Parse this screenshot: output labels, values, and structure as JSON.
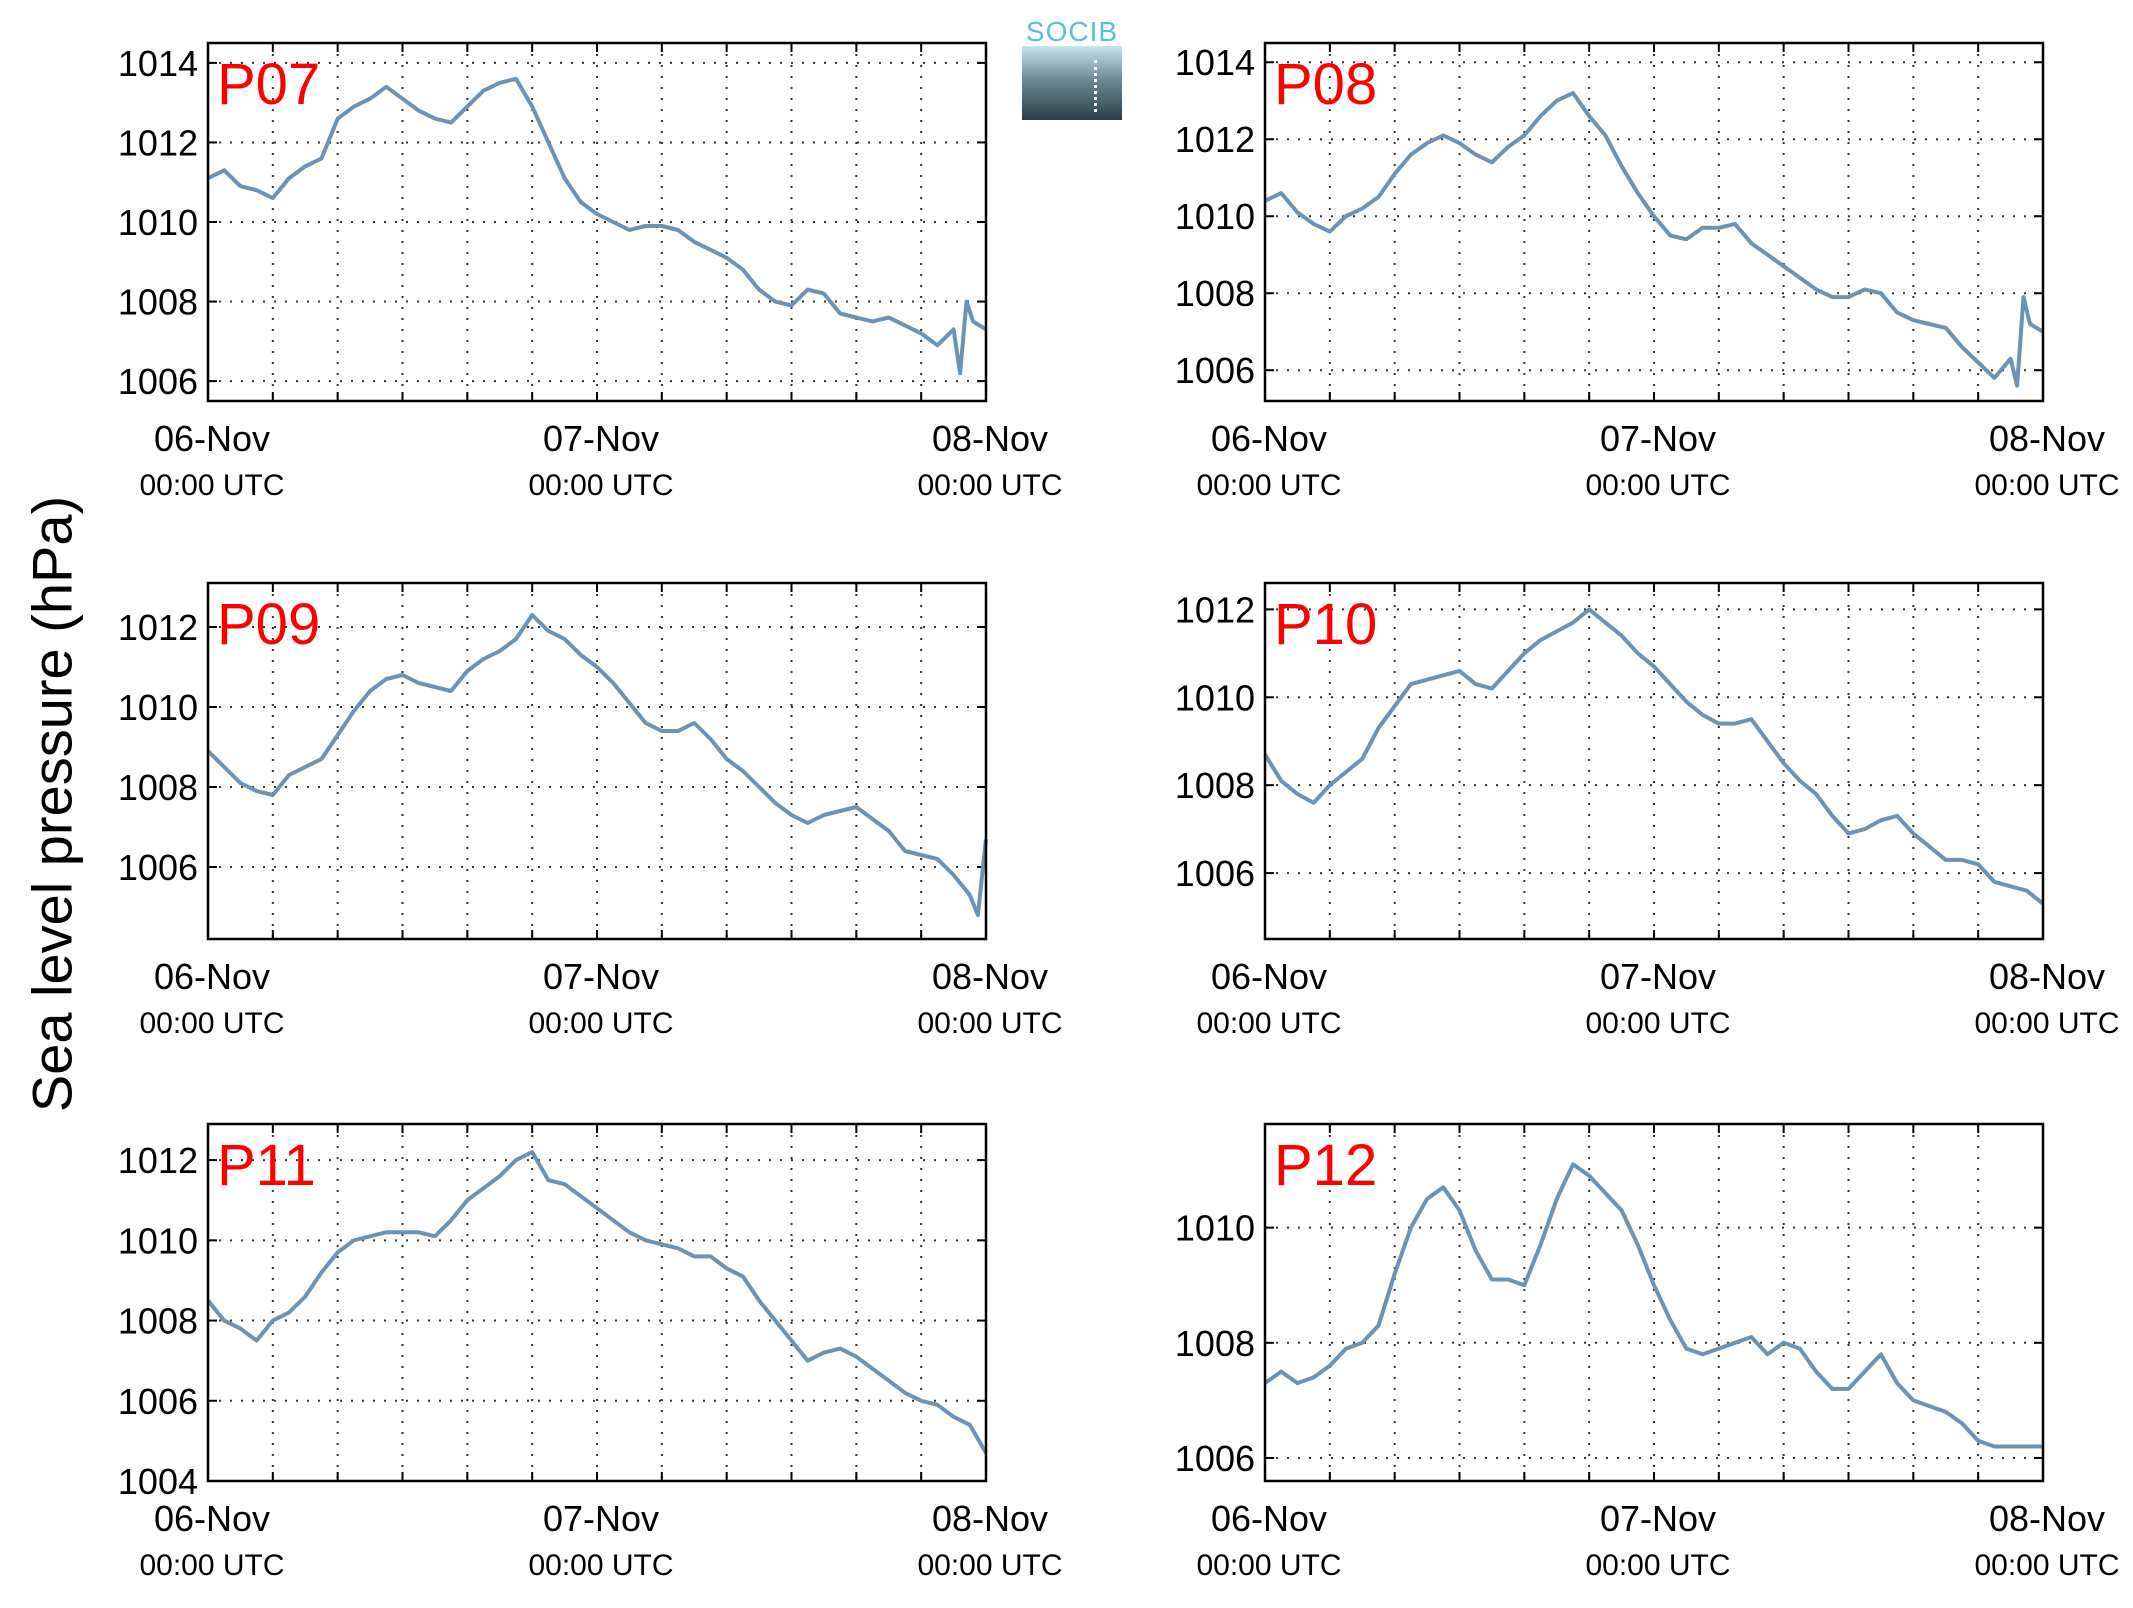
{
  "figure": {
    "ylabel": "Sea level pressure (hPa)",
    "logo_text": "SOCIB"
  },
  "chart_data": [
    {
      "type": "line",
      "panel_label": "P07",
      "ylim": [
        1005.5,
        1014.5
      ],
      "yticks": [
        1006,
        1008,
        1010,
        1012,
        1014
      ],
      "ytick_labels": [
        "1006",
        "1008",
        "1010",
        "1012",
        "1014"
      ],
      "xlim": [
        0,
        48
      ],
      "xticks": [
        0,
        24,
        48
      ],
      "xtick_labels": [
        "06-Nov",
        "07-Nov",
        "08-Nov"
      ],
      "xtick_sublabels": [
        "00:00 UTC",
        "00:00 UTC",
        "00:00 UTC"
      ],
      "grid": true,
      "color": "#6b93b8",
      "label_color": "#ff0000",
      "x": [
        0,
        1,
        2,
        3,
        4,
        5,
        6,
        7,
        8,
        9,
        10,
        11,
        12,
        13,
        14,
        15,
        16,
        17,
        18,
        19,
        20,
        21,
        22,
        23,
        24,
        25,
        26,
        27,
        28,
        29,
        30,
        31,
        32,
        33,
        34,
        35,
        36,
        37,
        38,
        39,
        40,
        41,
        42,
        43,
        44,
        45,
        46,
        46.4,
        46.8,
        47.2,
        48
      ],
      "values": [
        1011.1,
        1011.3,
        1010.9,
        1010.8,
        1010.6,
        1011.1,
        1011.4,
        1011.6,
        1012.6,
        1012.9,
        1013.1,
        1013.4,
        1013.1,
        1012.8,
        1012.6,
        1012.5,
        1012.9,
        1013.3,
        1013.5,
        1013.6,
        1012.9,
        1012.0,
        1011.1,
        1010.5,
        1010.2,
        1010.0,
        1009.8,
        1009.9,
        1009.9,
        1009.8,
        1009.5,
        1009.3,
        1009.1,
        1008.8,
        1008.3,
        1008.0,
        1007.9,
        1008.3,
        1008.2,
        1007.7,
        1007.6,
        1007.5,
        1007.6,
        1007.4,
        1007.2,
        1006.9,
        1007.3,
        1006.2,
        1008.0,
        1007.5,
        1007.3
      ]
    },
    {
      "type": "line",
      "panel_label": "P08",
      "ylim": [
        1005.2,
        1014.5
      ],
      "yticks": [
        1006,
        1008,
        1010,
        1012,
        1014
      ],
      "ytick_labels": [
        "1006",
        "1008",
        "1010",
        "1012",
        "1014"
      ],
      "xlim": [
        0,
        48
      ],
      "xticks": [
        0,
        24,
        48
      ],
      "xtick_labels": [
        "06-Nov",
        "07-Nov",
        "08-Nov"
      ],
      "xtick_sublabels": [
        "00:00 UTC",
        "00:00 UTC",
        "00:00 UTC"
      ],
      "grid": true,
      "color": "#6b93b8",
      "label_color": "#ff0000",
      "x": [
        0,
        1,
        2,
        3,
        4,
        5,
        6,
        7,
        8,
        9,
        10,
        11,
        12,
        13,
        14,
        15,
        16,
        17,
        18,
        19,
        20,
        21,
        22,
        23,
        24,
        25,
        26,
        27,
        28,
        29,
        30,
        31,
        32,
        33,
        34,
        35,
        36,
        37,
        38,
        39,
        40,
        41,
        42,
        43,
        44,
        45,
        46,
        46.4,
        46.8,
        47.2,
        48
      ],
      "values": [
        1010.4,
        1010.6,
        1010.1,
        1009.8,
        1009.6,
        1010.0,
        1010.2,
        1010.5,
        1011.1,
        1011.6,
        1011.9,
        1012.1,
        1011.9,
        1011.6,
        1011.4,
        1011.8,
        1012.1,
        1012.6,
        1013.0,
        1013.2,
        1012.6,
        1012.1,
        1011.3,
        1010.6,
        1010.0,
        1009.5,
        1009.4,
        1009.7,
        1009.7,
        1009.8,
        1009.3,
        1009.0,
        1008.7,
        1008.4,
        1008.1,
        1007.9,
        1007.9,
        1008.1,
        1008.0,
        1007.5,
        1007.3,
        1007.2,
        1007.1,
        1006.6,
        1006.2,
        1005.8,
        1006.3,
        1005.6,
        1007.9,
        1007.2,
        1007.0
      ]
    },
    {
      "type": "line",
      "panel_label": "P09",
      "ylim": [
        1004.2,
        1013.1
      ],
      "yticks": [
        1006,
        1008,
        1010,
        1012
      ],
      "ytick_labels": [
        "1006",
        "1008",
        "1010",
        "1012"
      ],
      "xlim": [
        0,
        48
      ],
      "xticks": [
        0,
        24,
        48
      ],
      "xtick_labels": [
        "06-Nov",
        "07-Nov",
        "08-Nov"
      ],
      "xtick_sublabels": [
        "00:00 UTC",
        "00:00 UTC",
        "00:00 UTC"
      ],
      "grid": true,
      "color": "#6b93b8",
      "label_color": "#ff0000",
      "x": [
        0,
        1,
        2,
        3,
        4,
        5,
        6,
        7,
        8,
        9,
        10,
        11,
        12,
        13,
        14,
        15,
        16,
        17,
        18,
        19,
        20,
        21,
        22,
        23,
        24,
        25,
        26,
        27,
        28,
        29,
        30,
        31,
        32,
        33,
        34,
        35,
        36,
        37,
        38,
        39,
        40,
        41,
        42,
        43,
        44,
        45,
        46,
        47,
        47.5,
        48
      ],
      "values": [
        1008.9,
        1008.5,
        1008.1,
        1007.9,
        1007.8,
        1008.3,
        1008.5,
        1008.7,
        1009.3,
        1009.9,
        1010.4,
        1010.7,
        1010.8,
        1010.6,
        1010.5,
        1010.4,
        1010.9,
        1011.2,
        1011.4,
        1011.7,
        1012.3,
        1011.9,
        1011.7,
        1011.3,
        1011.0,
        1010.6,
        1010.1,
        1009.6,
        1009.4,
        1009.4,
        1009.6,
        1009.2,
        1008.7,
        1008.4,
        1008.0,
        1007.6,
        1007.3,
        1007.1,
        1007.3,
        1007.4,
        1007.5,
        1007.2,
        1006.9,
        1006.4,
        1006.3,
        1006.2,
        1005.8,
        1005.3,
        1004.8,
        1006.7
      ]
    },
    {
      "type": "line",
      "panel_label": "P10",
      "ylim": [
        1004.5,
        1012.6
      ],
      "yticks": [
        1006,
        1008,
        1010,
        1012
      ],
      "ytick_labels": [
        "1006",
        "1008",
        "1010",
        "1012"
      ],
      "xlim": [
        0,
        48
      ],
      "xticks": [
        0,
        24,
        48
      ],
      "xtick_labels": [
        "06-Nov",
        "07-Nov",
        "08-Nov"
      ],
      "xtick_sublabels": [
        "00:00 UTC",
        "00:00 UTC",
        "00:00 UTC"
      ],
      "grid": true,
      "color": "#6b93b8",
      "label_color": "#ff0000",
      "x": [
        0,
        1,
        2,
        3,
        4,
        5,
        6,
        7,
        8,
        9,
        10,
        11,
        12,
        13,
        14,
        15,
        16,
        17,
        18,
        19,
        20,
        21,
        22,
        23,
        24,
        25,
        26,
        27,
        28,
        29,
        30,
        31,
        32,
        33,
        34,
        35,
        36,
        37,
        38,
        39,
        40,
        41,
        42,
        43,
        44,
        45,
        46,
        47,
        48
      ],
      "values": [
        1008.7,
        1008.1,
        1007.8,
        1007.6,
        1008.0,
        1008.3,
        1008.6,
        1009.3,
        1009.8,
        1010.3,
        1010.4,
        1010.5,
        1010.6,
        1010.3,
        1010.2,
        1010.6,
        1011.0,
        1011.3,
        1011.5,
        1011.7,
        1012.0,
        1011.7,
        1011.4,
        1011.0,
        1010.7,
        1010.3,
        1009.9,
        1009.6,
        1009.4,
        1009.4,
        1009.5,
        1009.0,
        1008.5,
        1008.1,
        1007.8,
        1007.3,
        1006.9,
        1007.0,
        1007.2,
        1007.3,
        1006.9,
        1006.6,
        1006.3,
        1006.3,
        1006.2,
        1005.8,
        1005.7,
        1005.6,
        1005.3
      ]
    },
    {
      "type": "line",
      "panel_label": "P11",
      "ylim": [
        1004,
        1012.9
      ],
      "yticks": [
        1004,
        1006,
        1008,
        1010,
        1012
      ],
      "ytick_labels": [
        "1004",
        "1006",
        "1008",
        "1010",
        "1012"
      ],
      "xlim": [
        0,
        48
      ],
      "xticks": [
        0,
        24,
        48
      ],
      "xtick_labels": [
        "06-Nov",
        "07-Nov",
        "08-Nov"
      ],
      "xtick_sublabels": [
        "00:00 UTC",
        "00:00 UTC",
        "00:00 UTC"
      ],
      "grid": true,
      "color": "#6b93b8",
      "label_color": "#ff0000",
      "x": [
        0,
        1,
        2,
        3,
        4,
        5,
        6,
        7,
        8,
        9,
        10,
        11,
        12,
        13,
        14,
        15,
        16,
        17,
        18,
        19,
        20,
        21,
        22,
        23,
        24,
        25,
        26,
        27,
        28,
        29,
        30,
        31,
        32,
        33,
        34,
        35,
        36,
        37,
        38,
        39,
        40,
        41,
        42,
        43,
        44,
        45,
        46,
        47,
        48
      ],
      "values": [
        1008.5,
        1008.0,
        1007.8,
        1007.5,
        1008.0,
        1008.2,
        1008.6,
        1009.2,
        1009.7,
        1010.0,
        1010.1,
        1010.2,
        1010.2,
        1010.2,
        1010.1,
        1010.5,
        1011.0,
        1011.3,
        1011.6,
        1012.0,
        1012.2,
        1011.5,
        1011.4,
        1011.1,
        1010.8,
        1010.5,
        1010.2,
        1010.0,
        1009.9,
        1009.8,
        1009.6,
        1009.6,
        1009.3,
        1009.1,
        1008.5,
        1008.0,
        1007.5,
        1007.0,
        1007.2,
        1007.3,
        1007.1,
        1006.8,
        1006.5,
        1006.2,
        1006.0,
        1005.9,
        1005.6,
        1005.4,
        1004.7
      ]
    },
    {
      "type": "line",
      "panel_label": "P12",
      "ylim": [
        1005.6,
        1011.8
      ],
      "yticks": [
        1006,
        1008,
        1010
      ],
      "ytick_labels": [
        "1006",
        "1008",
        "1010"
      ],
      "xlim": [
        0,
        48
      ],
      "xticks": [
        0,
        24,
        48
      ],
      "xtick_labels": [
        "06-Nov",
        "07-Nov",
        "08-Nov"
      ],
      "xtick_sublabels": [
        "00:00 UTC",
        "00:00 UTC",
        "00:00 UTC"
      ],
      "grid": true,
      "color": "#6b93b8",
      "label_color": "#ff0000",
      "x": [
        0,
        1,
        2,
        3,
        4,
        5,
        6,
        7,
        8,
        9,
        10,
        11,
        12,
        13,
        14,
        15,
        16,
        17,
        18,
        19,
        20,
        21,
        22,
        23,
        24,
        25,
        26,
        27,
        28,
        29,
        30,
        31,
        32,
        33,
        34,
        35,
        36,
        37,
        38,
        39,
        40,
        41,
        42,
        43,
        44,
        45,
        46,
        47,
        48
      ],
      "values": [
        1007.3,
        1007.5,
        1007.3,
        1007.4,
        1007.6,
        1007.9,
        1008.0,
        1008.3,
        1009.2,
        1010.0,
        1010.5,
        1010.7,
        1010.3,
        1009.6,
        1009.1,
        1009.1,
        1009.0,
        1009.7,
        1010.5,
        1011.1,
        1010.9,
        1010.6,
        1010.3,
        1009.7,
        1009.0,
        1008.4,
        1007.9,
        1007.8,
        1007.9,
        1008.0,
        1008.1,
        1007.8,
        1008.0,
        1007.9,
        1007.5,
        1007.2,
        1007.2,
        1007.5,
        1007.8,
        1007.3,
        1007.0,
        1006.9,
        1006.8,
        1006.6,
        1006.3,
        1006.2,
        1006.2,
        1006.2,
        1006.2
      ]
    }
  ]
}
